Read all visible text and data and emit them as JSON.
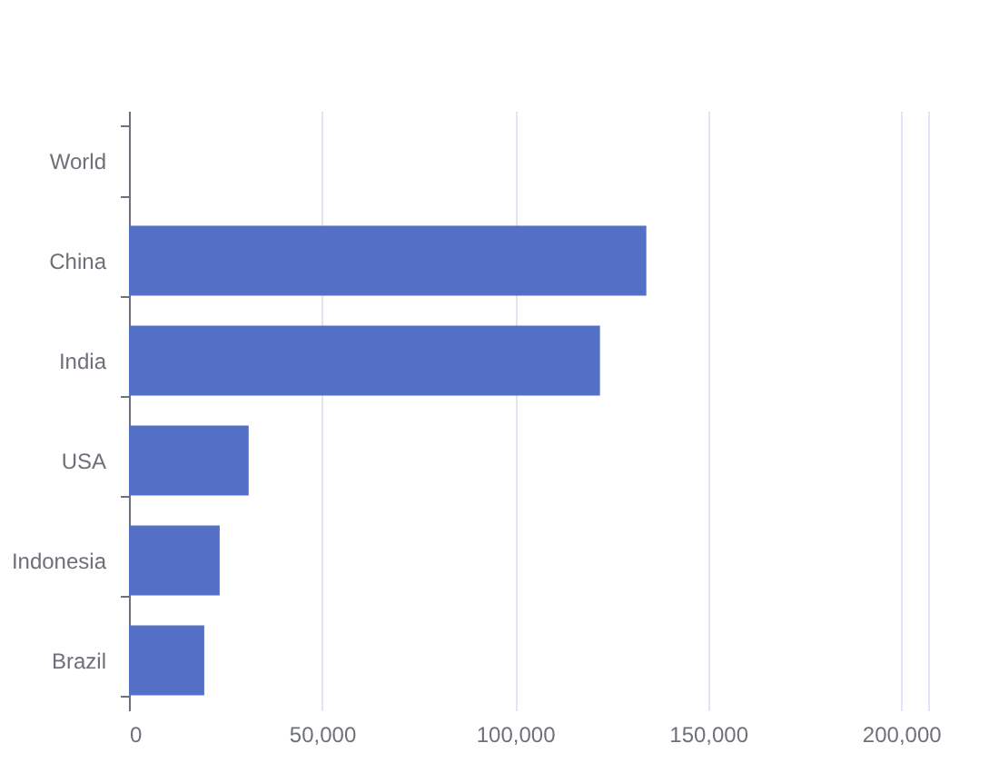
{
  "chart_data": {
    "type": "bar",
    "orientation": "horizontal",
    "categories": [
      "World",
      "China",
      "India",
      "USA",
      "Indonesia",
      "Brazil"
    ],
    "values": [
      null,
      134000,
      122000,
      31000,
      23500,
      19500
    ],
    "color": "#5470c6",
    "xlim": [
      0,
      207000
    ],
    "xticks": [
      0,
      {
        "value": 50000,
        "label": "50,000"
      },
      {
        "value": 100000,
        "label": "100,000"
      },
      {
        "value": 150000,
        "label": "150,000"
      },
      {
        "value": 200000,
        "label": "200,000"
      },
      {
        "value": 207000,
        "label": null
      }
    ],
    "grid": "x"
  }
}
